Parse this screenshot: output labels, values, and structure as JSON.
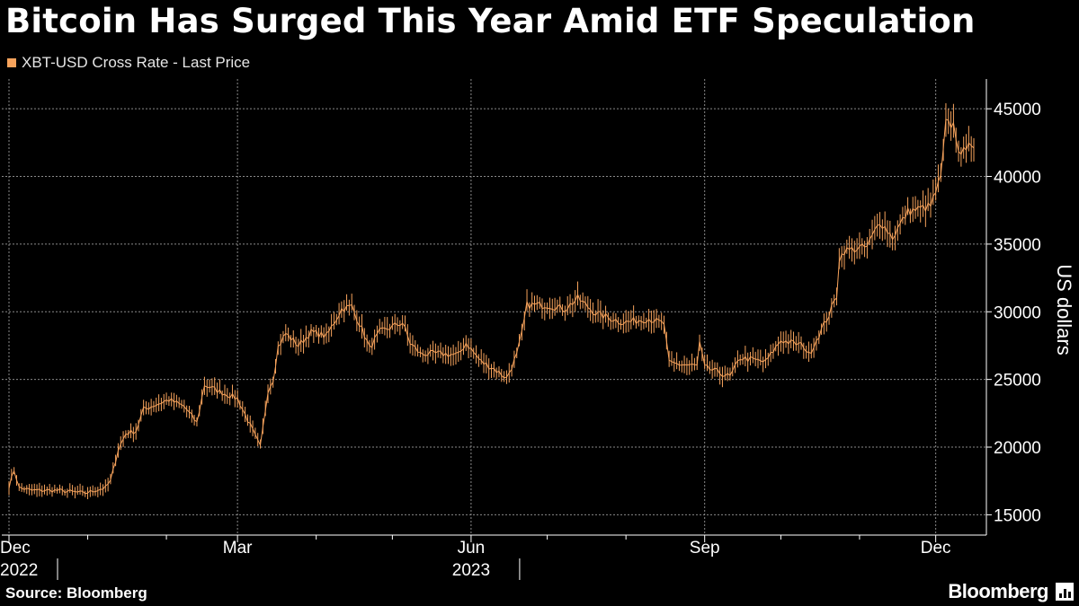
{
  "title": "Bitcoin Has Surged This Year Amid ETF Speculation",
  "source": "Source: Bloomberg",
  "brand": "Bloomberg",
  "colors": {
    "series": "#f7a35c",
    "grid": "#8a8a8a",
    "background": "#000000"
  },
  "chart_data": {
    "type": "line",
    "series": [
      {
        "name": "XBT-USD Cross Rate - Last Price",
        "anchors": [
          [
            "2022-12-01",
            17100
          ],
          [
            "2022-12-03",
            18300
          ],
          [
            "2022-12-05",
            17000
          ],
          [
            "2022-12-10",
            16800
          ],
          [
            "2022-12-20",
            16800
          ],
          [
            "2022-12-31",
            16600
          ],
          [
            "2023-01-08",
            17000
          ],
          [
            "2023-01-10",
            17500
          ],
          [
            "2023-01-13",
            19800
          ],
          [
            "2023-01-16",
            21000
          ],
          [
            "2023-01-20",
            21200
          ],
          [
            "2023-01-23",
            22800
          ],
          [
            "2023-02-02",
            23500
          ],
          [
            "2023-02-08",
            23000
          ],
          [
            "2023-02-13",
            21800
          ],
          [
            "2023-02-16",
            24600
          ],
          [
            "2023-02-22",
            24100
          ],
          [
            "2023-03-01",
            23600
          ],
          [
            "2023-03-04",
            22400
          ],
          [
            "2023-03-10",
            20000
          ],
          [
            "2023-03-13",
            24200
          ],
          [
            "2023-03-15",
            25000
          ],
          [
            "2023-03-17",
            27400
          ],
          [
            "2023-03-20",
            28400
          ],
          [
            "2023-03-25",
            27500
          ],
          [
            "2023-03-30",
            28500
          ],
          [
            "2023-04-05",
            28200
          ],
          [
            "2023-04-11",
            30200
          ],
          [
            "2023-04-15",
            30400
          ],
          [
            "2023-04-20",
            28300
          ],
          [
            "2023-04-22",
            27300
          ],
          [
            "2023-04-26",
            28500
          ],
          [
            "2023-05-01",
            28900
          ],
          [
            "2023-05-05",
            29200
          ],
          [
            "2023-05-08",
            27700
          ],
          [
            "2023-05-12",
            26900
          ],
          [
            "2023-05-20",
            26900
          ],
          [
            "2023-05-27",
            26800
          ],
          [
            "2023-05-30",
            27700
          ],
          [
            "2023-06-05",
            26300
          ],
          [
            "2023-06-10",
            25800
          ],
          [
            "2023-06-15",
            25100
          ],
          [
            "2023-06-19",
            26800
          ],
          [
            "2023-06-21",
            28400
          ],
          [
            "2023-06-23",
            30500
          ],
          [
            "2023-07-01",
            30500
          ],
          [
            "2023-07-08",
            30200
          ],
          [
            "2023-07-13",
            31000
          ],
          [
            "2023-07-20",
            29900
          ],
          [
            "2023-07-31",
            29200
          ],
          [
            "2023-08-10",
            29500
          ],
          [
            "2023-08-16",
            29100
          ],
          [
            "2023-08-18",
            26200
          ],
          [
            "2023-08-29",
            26000
          ],
          [
            "2023-08-30",
            27700
          ],
          [
            "2023-09-01",
            25900
          ],
          [
            "2023-09-11",
            25200
          ],
          [
            "2023-09-15",
            26600
          ],
          [
            "2023-09-25",
            26300
          ],
          [
            "2023-10-01",
            27900
          ],
          [
            "2023-10-10",
            27500
          ],
          [
            "2023-10-12",
            26800
          ],
          [
            "2023-10-16",
            28300
          ],
          [
            "2023-10-20",
            29800
          ],
          [
            "2023-10-23",
            31200
          ],
          [
            "2023-10-24",
            33900
          ],
          [
            "2023-10-26",
            34500
          ],
          [
            "2023-11-04",
            34800
          ],
          [
            "2023-11-09",
            36700
          ],
          [
            "2023-11-14",
            35500
          ],
          [
            "2023-11-20",
            37400
          ],
          [
            "2023-11-29",
            37800
          ],
          [
            "2023-12-03",
            39900
          ],
          [
            "2023-12-05",
            43900
          ],
          [
            "2023-12-08",
            43800
          ],
          [
            "2023-12-11",
            41300
          ],
          [
            "2023-12-14",
            42800
          ],
          [
            "2023-12-16",
            42100
          ]
        ]
      }
    ],
    "xlim": [
      "2022-12-01",
      "2023-12-16"
    ],
    "x_ticks": [
      {
        "label": "Dec",
        "year": "2022",
        "date": "2022-12-01"
      },
      {
        "label": "Mar",
        "year": "",
        "date": "2023-03-01"
      },
      {
        "label": "Jun",
        "year": "2023",
        "date": "2023-06-01"
      },
      {
        "label": "Sep",
        "year": "",
        "date": "2023-09-01"
      },
      {
        "label": "Dec",
        "year": "",
        "date": "2023-12-01"
      }
    ],
    "x_minor_ticks": [
      "2023-01-01",
      "2023-02-01",
      "2023-04-01",
      "2023-05-01",
      "2023-07-01",
      "2023-08-01",
      "2023-10-01",
      "2023-11-01"
    ],
    "ylim": [
      13500,
      47200
    ],
    "y_ticks": [
      15000,
      20000,
      25000,
      30000,
      35000,
      40000,
      45000
    ],
    "ylabel": "US dollars",
    "xlabel": "",
    "grid": true,
    "legend_position": "top-left"
  }
}
